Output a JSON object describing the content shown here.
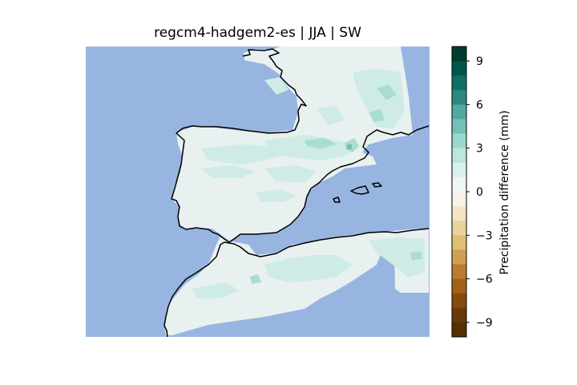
{
  "figure": {
    "title": "regcm4-hadgem2-es | JJA | SW"
  },
  "colorbar": {
    "label": "Precipitation difference (mm)",
    "ticks": [
      "9",
      "6",
      "3",
      "0",
      "−3",
      "−6",
      "−9"
    ],
    "range": [
      -10,
      10
    ],
    "levels": 20,
    "colors": [
      "#003c30",
      "#01564a",
      "#0f6f65",
      "#2d8880",
      "#51a99f",
      "#75c0b5",
      "#9bd8cc",
      "#bee6df",
      "#dbf0ed",
      "#f0f5f5",
      "#f7f2e7",
      "#f5e6c3",
      "#ebd39e",
      "#dfbf74",
      "#cda052",
      "#b97c2c",
      "#a26019",
      "#864c0e",
      "#693a07",
      "#543005"
    ]
  },
  "map": {
    "ocean_color": "#98b5e1",
    "land_color": "#e8f1f0",
    "coast_color": "#000000",
    "region": "Iberian Peninsula, southern France, northern Morocco and Algeria"
  }
}
